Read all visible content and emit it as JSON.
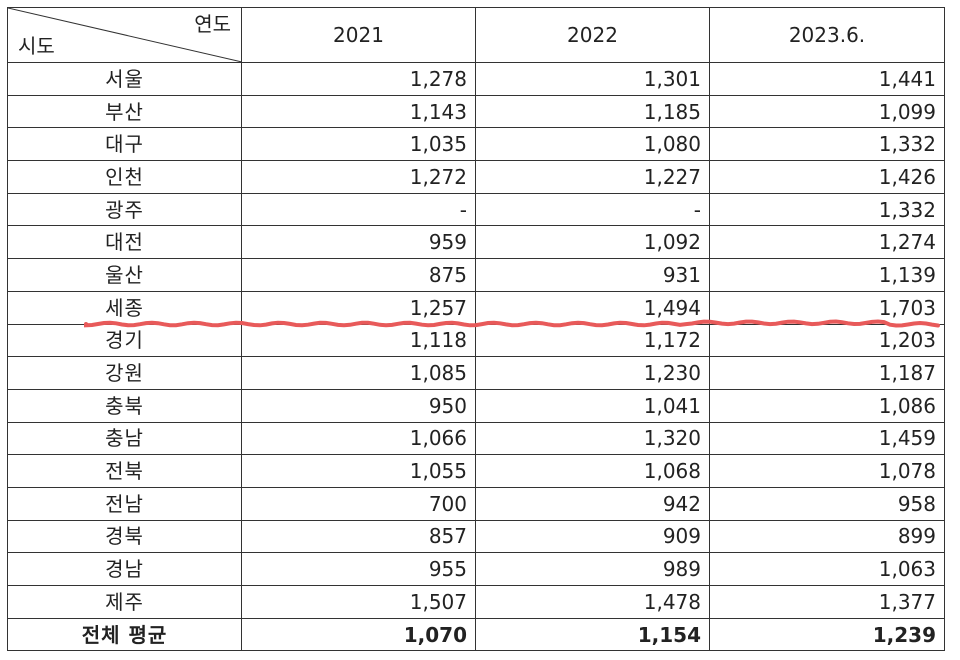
{
  "header": {
    "corner_top": "연도",
    "corner_bottom": "시도",
    "years": [
      "2021",
      "2022",
      "2023.6."
    ]
  },
  "rows": [
    {
      "region": "서울",
      "values": [
        "1,278",
        "1,301",
        "1,441"
      ]
    },
    {
      "region": "부산",
      "values": [
        "1,143",
        "1,185",
        "1,099"
      ]
    },
    {
      "region": "대구",
      "values": [
        "1,035",
        "1,080",
        "1,332"
      ]
    },
    {
      "region": "인천",
      "values": [
        "1,272",
        "1,227",
        "1,426"
      ]
    },
    {
      "region": "광주",
      "values": [
        "-",
        "-",
        "1,332"
      ]
    },
    {
      "region": "대전",
      "values": [
        "959",
        "1,092",
        "1,274"
      ]
    },
    {
      "region": "울산",
      "values": [
        "875",
        "931",
        "1,139"
      ]
    },
    {
      "region": "세종",
      "values": [
        "1,257",
        "1,494",
        "1,703"
      ]
    },
    {
      "region": "경기",
      "values": [
        "1,118",
        "1,172",
        "1,203"
      ]
    },
    {
      "region": "강원",
      "values": [
        "1,085",
        "1,230",
        "1,187"
      ]
    },
    {
      "region": "충북",
      "values": [
        "950",
        "1,041",
        "1,086"
      ]
    },
    {
      "region": "충남",
      "values": [
        "1,066",
        "1,320",
        "1,459"
      ]
    },
    {
      "region": "전북",
      "values": [
        "1,055",
        "1,068",
        "1,078"
      ]
    },
    {
      "region": "전남",
      "values": [
        "700",
        "942",
        "958"
      ]
    },
    {
      "region": "경북",
      "values": [
        "857",
        "909",
        "899"
      ]
    },
    {
      "region": "경남",
      "values": [
        "955",
        "989",
        "1,063"
      ]
    },
    {
      "region": "제주",
      "values": [
        "1,507",
        "1,478",
        "1,377"
      ]
    }
  ],
  "total": {
    "label": "전체 평균",
    "values": [
      "1,070",
      "1,154",
      "1,239"
    ]
  },
  "colors": {
    "underline": "#e85a5a",
    "border": "#333333"
  }
}
